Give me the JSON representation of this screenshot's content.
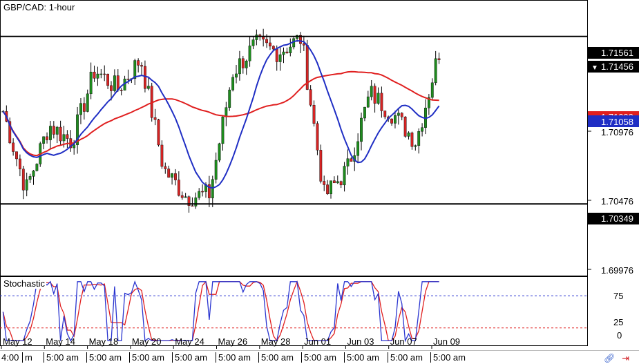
{
  "header": {
    "title": "GBP/CAD: 1-hour"
  },
  "stochastic": {
    "label": "Stochastic",
    "levels": [
      "75",
      "25",
      "0"
    ]
  },
  "price_axis": {
    "ticks": [
      "1.70976",
      "1.70476",
      "1.69976"
    ],
    "badges": {
      "resistance": "1.71561",
      "last": "1.71456",
      "ma_red": "1.71099",
      "ma_blue": "1.71058",
      "support": "1.70349"
    }
  },
  "date_labels": [
    "May 12",
    "May 14",
    "May 18",
    "May 20",
    "May 24",
    "May 26",
    "May 28",
    "Jun 01",
    "Jun 03",
    "Jun 07",
    "Jun 09"
  ],
  "time_labels": [
    "4:00",
    "m",
    "5:00 am",
    "5:00 am",
    "5:00 am",
    "5:00 am",
    "5:00 am",
    "5:00 am",
    "5:00 am",
    "5:00 am",
    "5:00 am",
    "5:00 am"
  ],
  "colors": {
    "up": "#1e8c1e",
    "down": "#d62424",
    "ma_fast": "#1f2ec4",
    "ma_slow": "#e01f1f",
    "badge_dark": "#000000",
    "badge_blue": "#1f2ec4",
    "badge_red": "#e01f1f",
    "stoch_k": "#2a35d0",
    "stoch_d": "#e01f1f"
  },
  "chart_data": {
    "type": "candlestick",
    "title": "GBP/CAD: 1-hour",
    "y_range": [
      1.6985,
      1.718
    ],
    "horizontal_lines": [
      1.71561,
      1.70349
    ],
    "price_path": [
      {
        "date": "May 12",
        "price": 1.7102
      },
      {
        "date": "May 13",
        "price": 1.7045
      },
      {
        "date": "May 14",
        "price": 1.7092
      },
      {
        "date": "May 15",
        "price": 1.708
      },
      {
        "date": "May 18",
        "price": 1.7132
      },
      {
        "date": "May 19",
        "price": 1.7118
      },
      {
        "date": "May 20",
        "price": 1.714
      },
      {
        "date": "May 21",
        "price": 1.706
      },
      {
        "date": "May 24",
        "price": 1.704
      },
      {
        "date": "May 25",
        "price": 1.7042
      },
      {
        "date": "May 26",
        "price": 1.713
      },
      {
        "date": "May 27",
        "price": 1.715
      },
      {
        "date": "May 28",
        "price": 1.7145
      },
      {
        "date": "May 31",
        "price": 1.7155
      },
      {
        "date": "Jun 01",
        "price": 1.704
      },
      {
        "date": "Jun 02",
        "price": 1.706
      },
      {
        "date": "Jun 03",
        "price": 1.7115
      },
      {
        "date": "Jun 04",
        "price": 1.71
      },
      {
        "date": "Jun 07",
        "price": 1.708
      },
      {
        "date": "Jun 08",
        "price": 1.7145
      }
    ],
    "moving_averages": [
      {
        "color": "blue",
        "last": 1.71058
      },
      {
        "color": "red",
        "last": 1.71099
      }
    ],
    "stochastic_levels": [
      75,
      25
    ]
  }
}
